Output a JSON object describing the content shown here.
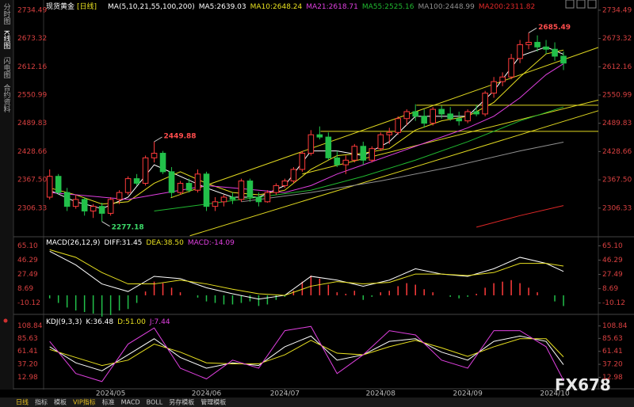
{
  "chart_data": {
    "type": "candlestick",
    "legend": {
      "instrument": "现货黄金",
      "period": "[日线]",
      "ma_params": "MA(5,10,21,55,100,200)"
    },
    "up_color": "#ff3b3b",
    "down_color": "#22c04a",
    "xlim": [
      -0.7,
      63
    ],
    "xticks": [
      {
        "value": 7,
        "label": "2024/05"
      },
      {
        "value": 18,
        "label": "2024/06"
      },
      {
        "value": 27,
        "label": "2024/07"
      },
      {
        "value": 38,
        "label": "2024/08"
      },
      {
        "value": 48,
        "label": "2024/09"
      },
      {
        "value": 58,
        "label": "2024/10"
      }
    ],
    "ylim": [
      2246,
      2748
    ],
    "yticks": [
      2734.49,
      2673.32,
      2612.16,
      2550.99,
      2489.83,
      2428.66,
      {
        "value": 2367.5,
        "label": "2367.50"
      },
      2306.33
    ],
    "candles": [
      [
        2330,
        2390,
        2325,
        2375
      ],
      [
        2375,
        2380,
        2335,
        2340
      ],
      [
        2340,
        2350,
        2300,
        2310
      ],
      [
        2310,
        2335,
        2305,
        2325
      ],
      [
        2325,
        2330,
        2290,
        2300
      ],
      [
        2300,
        2315,
        2285,
        2310
      ],
      [
        2310,
        2318,
        2277.18,
        2295
      ],
      [
        2295,
        2330,
        2290,
        2325
      ],
      [
        2325,
        2345,
        2315,
        2340
      ],
      [
        2340,
        2375,
        2335,
        2370
      ],
      [
        2370,
        2380,
        2355,
        2360
      ],
      [
        2360,
        2420,
        2355,
        2415
      ],
      [
        2415,
        2449.88,
        2405,
        2425
      ],
      [
        2425,
        2430,
        2380,
        2385
      ],
      [
        2385,
        2395,
        2330,
        2340
      ],
      [
        2340,
        2365,
        2335,
        2360
      ],
      [
        2360,
        2370,
        2340,
        2345
      ],
      [
        2345,
        2390,
        2340,
        2380
      ],
      [
        2380,
        2385,
        2300,
        2310
      ],
      [
        2310,
        2330,
        2300,
        2320
      ],
      [
        2320,
        2335,
        2310,
        2330
      ],
      [
        2330,
        2340,
        2315,
        2325
      ],
      [
        2325,
        2370,
        2320,
        2365
      ],
      [
        2365,
        2370,
        2320,
        2330
      ],
      [
        2330,
        2340,
        2310,
        2320
      ],
      [
        2320,
        2345,
        2318,
        2340
      ],
      [
        2340,
        2360,
        2335,
        2355
      ],
      [
        2355,
        2370,
        2350,
        2365
      ],
      [
        2365,
        2395,
        2360,
        2390
      ],
      [
        2390,
        2430,
        2385,
        2425
      ],
      [
        2425,
        2475,
        2420,
        2465
      ],
      [
        2465,
        2483,
        2455,
        2460
      ],
      [
        2460,
        2470,
        2410,
        2415
      ],
      [
        2415,
        2430,
        2395,
        2400
      ],
      [
        2400,
        2420,
        2380,
        2410
      ],
      [
        2410,
        2445,
        2405,
        2440
      ],
      [
        2440,
        2450,
        2400,
        2410
      ],
      [
        2410,
        2440,
        2405,
        2435
      ],
      [
        2435,
        2470,
        2430,
        2465
      ],
      [
        2465,
        2480,
        2445,
        2470
      ],
      [
        2470,
        2505,
        2465,
        2500
      ],
      [
        2500,
        2520,
        2485,
        2515
      ],
      [
        2515,
        2531,
        2495,
        2505
      ],
      [
        2505,
        2520,
        2480,
        2490
      ],
      [
        2490,
        2525,
        2485,
        2520
      ],
      [
        2520,
        2528,
        2500,
        2510
      ],
      [
        2510,
        2525,
        2495,
        2500
      ],
      [
        2500,
        2515,
        2485,
        2495
      ],
      [
        2495,
        2520,
        2490,
        2515
      ],
      [
        2515,
        2530,
        2505,
        2510
      ],
      [
        2510,
        2560,
        2505,
        2555
      ],
      [
        2555,
        2590,
        2545,
        2580
      ],
      [
        2580,
        2600,
        2570,
        2590
      ],
      [
        2590,
        2640,
        2585,
        2630
      ],
      [
        2630,
        2670,
        2620,
        2660
      ],
      [
        2660,
        2685.49,
        2650,
        2665
      ],
      [
        2665,
        2680,
        2645,
        2655
      ],
      [
        2655,
        2670,
        2640,
        2650
      ],
      [
        2650,
        2665,
        2625,
        2635
      ],
      [
        2635,
        2645,
        2605,
        2620
      ]
    ],
    "annotations": [
      {
        "x": 55,
        "value": 2685.49,
        "color": "#ff4d4d"
      },
      {
        "x": 12,
        "value": 2449.88,
        "color": "#ff4d4d"
      },
      {
        "x": 6,
        "value": 2277.18,
        "color": "#3ddc6a"
      }
    ],
    "trendlines": [
      {
        "color": "#e0d820",
        "x": [
          13.9,
          63
        ],
        "values": [
          2328.6,
          2654
        ]
      },
      {
        "color": "#e0d820",
        "x": [
          16.1,
          63
        ],
        "values": [
          2246.4,
          2517
        ]
      },
      {
        "color": "#e0d820",
        "x": [
          29,
          63
        ],
        "values": [
          2380,
          2540
        ]
      },
      {
        "color": "#e0d820",
        "x": [
          42.1,
          63
        ],
        "values": [
          2529,
          2529
        ]
      },
      {
        "color": "#e0d820",
        "x": [
          31.1,
          63
        ],
        "values": [
          2472.4,
          2472.4
        ]
      }
    ],
    "series": [
      {
        "name": "MA5:",
        "color": "#ffffff",
        "x": [
          0,
          3,
          6,
          9,
          12,
          15,
          18,
          21,
          24,
          27,
          30,
          33,
          36,
          39,
          42,
          45,
          48,
          51,
          54,
          57,
          59
        ],
        "values": [
          2345,
          2320,
          2305,
          2330,
          2400,
          2375,
          2350,
          2330,
          2330,
          2355,
          2430,
          2430,
          2420,
          2450,
          2505,
          2505,
          2505,
          2560,
          2635,
          2655,
          2639.03
        ]
      },
      {
        "name": "MA10:",
        "color": "#e8e020",
        "x": [
          0,
          3,
          6,
          9,
          12,
          15,
          18,
          21,
          24,
          27,
          30,
          33,
          36,
          39,
          42,
          45,
          48,
          51,
          54,
          57,
          59
        ],
        "values": [
          2350,
          2335,
          2315,
          2320,
          2360,
          2385,
          2360,
          2340,
          2335,
          2345,
          2390,
          2420,
          2425,
          2435,
          2475,
          2495,
          2505,
          2535,
          2590,
          2640,
          2648.24
        ]
      },
      {
        "name": "MA21:",
        "color": "#e040e0",
        "x": [
          0,
          3,
          6,
          9,
          12,
          15,
          18,
          21,
          24,
          27,
          30,
          33,
          36,
          39,
          42,
          45,
          48,
          51,
          54,
          57,
          59
        ],
        "values": [
          2340,
          2335,
          2330,
          2325,
          2335,
          2345,
          2355,
          2350,
          2345,
          2340,
          2355,
          2380,
          2400,
          2420,
          2440,
          2460,
          2480,
          2505,
          2545,
          2595,
          2618.71
        ]
      },
      {
        "name": "MA55:",
        "color": "#20b830",
        "x": [
          12,
          18,
          24,
          30,
          36,
          42,
          48,
          54,
          59
        ],
        "values": [
          2300,
          2315,
          2330,
          2345,
          2375,
          2410,
          2450,
          2495,
          2525.16
        ]
      },
      {
        "name": "MA100:",
        "color": "#909090",
        "x": [
          22,
          30,
          38,
          46,
          54,
          59
        ],
        "values": [
          2320,
          2340,
          2365,
          2395,
          2430,
          2448.99
        ]
      },
      {
        "name": "MA200:",
        "color": "#e02828",
        "x": [
          49,
          54,
          59
        ],
        "values": [
          2265,
          2290,
          2311.82
        ]
      }
    ],
    "macd": {
      "title": "MACD(26,12,9)",
      "ylim": [
        -24,
        76
      ],
      "yticks": [
        {
          "value": 65.1,
          "label": "65.10"
        },
        46.29,
        27.49,
        8.69,
        -10.12
      ],
      "lines": [
        {
          "name": "DIFF:",
          "color": "#ffffff",
          "x": [
            0,
            3,
            6,
            9,
            12,
            15,
            18,
            21,
            24,
            27,
            30,
            33,
            36,
            39,
            42,
            45,
            48,
            51,
            54,
            57,
            59
          ],
          "values": [
            58,
            40,
            15,
            5,
            25,
            22,
            10,
            2,
            -5,
            0,
            25,
            20,
            12,
            20,
            35,
            28,
            25,
            35,
            50,
            42,
            31.45
          ]
        },
        {
          "name": "DEA:",
          "color": "#e8e020",
          "x": [
            0,
            3,
            6,
            9,
            12,
            15,
            18,
            21,
            24,
            27,
            30,
            33,
            36,
            39,
            42,
            45,
            48,
            51,
            54,
            57,
            59
          ],
          "values": [
            60,
            50,
            30,
            15,
            15,
            20,
            15,
            8,
            2,
            0,
            12,
            18,
            15,
            17,
            28,
            28,
            26,
            30,
            42,
            42,
            38.5
          ],
          "value_labels": [
            null,
            null,
            null,
            null,
            null,
            null,
            null,
            null,
            null,
            null,
            null,
            null,
            null,
            null,
            null,
            null,
            null,
            null,
            null,
            null,
            "38.50"
          ]
        }
      ],
      "hist": {
        "name": "MACD:",
        "color": "#e040e0",
        "values": [
          -4,
          -10,
          -16,
          -20,
          -22,
          -24,
          -28,
          -26,
          -20,
          -18,
          -10,
          5,
          18,
          16,
          10,
          4,
          0,
          -3,
          -8,
          -10,
          -12,
          -12,
          -10,
          -8,
          -14,
          -12,
          -6,
          -2,
          6,
          18,
          26,
          22,
          14,
          4,
          2,
          6,
          -6,
          -2,
          4,
          6,
          12,
          16,
          14,
          8,
          4,
          0,
          -2,
          -4,
          -2,
          2,
          10,
          16,
          18,
          20,
          16,
          10,
          4,
          0,
          -8,
          -14.09
        ]
      }
    },
    "kdj": {
      "title": "KDJ(9,3,3)",
      "ylim": [
        -7,
        129
      ],
      "yticks": [
        108.84,
        85.63,
        61.41,
        {
          "value": 37.2,
          "label": "37.20"
        },
        12.98
      ],
      "lines": [
        {
          "name": "K:",
          "color": "#ffffff",
          "x": [
            0,
            3,
            6,
            9,
            12,
            15,
            18,
            21,
            24,
            27,
            30,
            33,
            36,
            39,
            42,
            45,
            48,
            51,
            54,
            57,
            59
          ],
          "values": [
            70,
            40,
            25,
            55,
            85,
            50,
            30,
            40,
            35,
            70,
            90,
            45,
            55,
            80,
            85,
            60,
            45,
            80,
            90,
            80,
            36.48
          ]
        },
        {
          "name": "D:",
          "color": "#e8e020",
          "x": [
            0,
            3,
            6,
            9,
            12,
            15,
            18,
            21,
            24,
            27,
            30,
            33,
            36,
            39,
            42,
            45,
            48,
            51,
            54,
            57,
            59
          ],
          "values": [
            65,
            50,
            35,
            45,
            75,
            60,
            40,
            38,
            38,
            55,
            82,
            58,
            55,
            70,
            82,
            68,
            52,
            70,
            85,
            85,
            51
          ],
          "value_labels": [
            null,
            null,
            null,
            null,
            null,
            null,
            null,
            null,
            null,
            null,
            null,
            null,
            null,
            null,
            null,
            null,
            null,
            null,
            null,
            null,
            "51.00"
          ]
        },
        {
          "name": "J:",
          "color": "#e040e0",
          "x": [
            0,
            3,
            6,
            9,
            12,
            15,
            18,
            21,
            24,
            27,
            30,
            33,
            36,
            39,
            42,
            45,
            48,
            51,
            54,
            57,
            59
          ],
          "values": [
            80,
            20,
            5,
            75,
            105,
            30,
            10,
            45,
            30,
            100,
            108,
            20,
            55,
            100,
            92,
            45,
            30,
            100,
            100,
            70,
            7.44
          ]
        }
      ]
    }
  },
  "ui": {
    "side_tabs": [
      "分时图",
      "K线图",
      "闪电图",
      "合约资料"
    ],
    "bottom_tabs": [
      "日线",
      "指标",
      "模板",
      "VIP指标",
      "标准",
      "MACD",
      "BOLL",
      "另存模板",
      "管理模板"
    ],
    "watermark": "FX678"
  }
}
